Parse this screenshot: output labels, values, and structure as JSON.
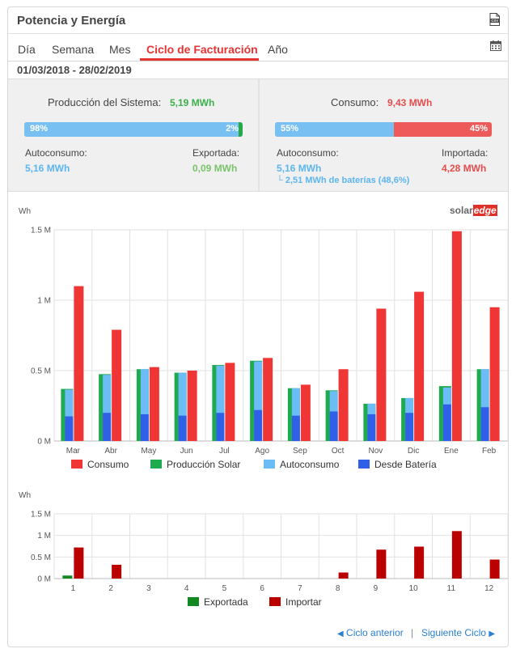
{
  "header": {
    "title": "Potencia y Energía",
    "csv_icon": "csv-download-icon"
  },
  "tabs": [
    {
      "label": "Día",
      "active": false
    },
    {
      "label": "Semana",
      "active": false
    },
    {
      "label": "Mes",
      "active": false
    },
    {
      "label": "Ciclo de Facturación",
      "active": true
    },
    {
      "label": "Año",
      "active": false
    }
  ],
  "date_range": "01/03/2018 - 28/02/2019",
  "production": {
    "label": "Producción del Sistema:",
    "value": "5,19 MWh",
    "bar_left_pct": "98%",
    "bar_right_pct": "2%",
    "self_fraction": 0.98,
    "self_label": "Autoconsumo:",
    "self_value": "5,16 MWh",
    "export_label": "Exportada:",
    "export_value": "0,09 MWh"
  },
  "consumption": {
    "label": "Consumo:",
    "value": "9,43 MWh",
    "bar_left_pct": "55%",
    "bar_right_pct": "45%",
    "self_fraction": 0.55,
    "self_label": "Autoconsumo:",
    "self_value": "5,16 MWh",
    "battery_note": "└ 2,51 MWh de baterías (48,6%)",
    "import_label": "Importada:",
    "import_value": "4,28 MWh"
  },
  "logo": {
    "part1": "solar",
    "part2": "edge"
  },
  "colors": {
    "consumo": "#f03535",
    "produccion": "#1eaa4e",
    "autoconsumo": "#6cbcf5",
    "bateria": "#3060e8",
    "exportada": "#118822",
    "importar": "#bb0000",
    "bar_blue": "#79c0f2",
    "bar_red": "#ee5a5a",
    "bar_green": "#22aa44"
  },
  "chart_data": [
    {
      "type": "bar",
      "ylabel": "Wh",
      "ylim": [
        0,
        1500000
      ],
      "ytick_labels": [
        "0 M",
        "0.5 M",
        "1 M",
        "1.5 M"
      ],
      "yticks": [
        0,
        500000,
        1000000,
        1500000
      ],
      "categories": [
        "Mar",
        "Abr",
        "May",
        "Jun",
        "Jul",
        "Ago",
        "Sep",
        "Oct",
        "Nov",
        "Dic",
        "Ene",
        "Feb"
      ],
      "series": [
        {
          "name": "Consumo",
          "values": [
            1100000,
            790000,
            525000,
            500000,
            555000,
            590000,
            400000,
            510000,
            940000,
            1060000,
            1490000,
            950000
          ]
        },
        {
          "name": "Producción Solar",
          "values": [
            370000,
            475000,
            510000,
            485000,
            540000,
            570000,
            375000,
            360000,
            265000,
            305000,
            390000,
            510000
          ]
        },
        {
          "name": "Autoconsumo",
          "values": [
            365000,
            470000,
            510000,
            485000,
            535000,
            565000,
            375000,
            355000,
            265000,
            305000,
            380000,
            510000
          ]
        },
        {
          "name": "Desde Batería",
          "values": [
            175000,
            200000,
            190000,
            180000,
            200000,
            220000,
            180000,
            210000,
            190000,
            200000,
            260000,
            240000
          ]
        }
      ],
      "legend_position": "bottom",
      "grid": true
    },
    {
      "type": "bar",
      "ylabel": "Wh",
      "ylim": [
        0,
        1500000
      ],
      "ytick_labels": [
        "0 M",
        "0.5 M",
        "1 M",
        "1.5 M"
      ],
      "yticks": [
        0,
        500000,
        1000000,
        1500000
      ],
      "categories": [
        "1",
        "2",
        "3",
        "4",
        "5",
        "6",
        "7",
        "8",
        "9",
        "10",
        "11",
        "12"
      ],
      "series": [
        {
          "name": "Exportada",
          "values": [
            70000,
            0,
            0,
            0,
            0,
            0,
            0,
            0,
            0,
            0,
            0,
            0
          ]
        },
        {
          "name": "Importar",
          "values": [
            720000,
            320000,
            0,
            0,
            0,
            0,
            0,
            140000,
            670000,
            740000,
            1100000,
            440000
          ]
        }
      ],
      "legend_position": "bottom",
      "grid": true
    }
  ],
  "navigation": {
    "prev": "Ciclo anterior",
    "separator": "|",
    "next": "Siguiente Ciclo",
    "prev_icon": "chevron-left-icon",
    "next_icon": "chevron-right-icon"
  }
}
